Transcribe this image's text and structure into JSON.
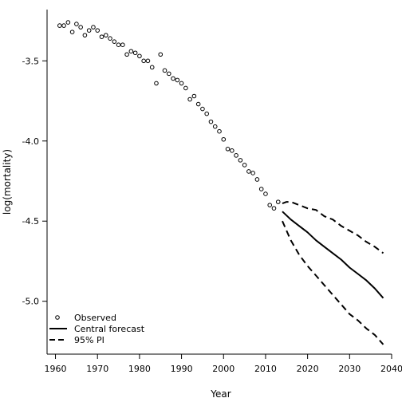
{
  "chart_data": {
    "type": "scatter",
    "title": "",
    "xlabel": "Year",
    "ylabel": "log(mortality)",
    "xlim": [
      1958,
      2040
    ],
    "ylim": [
      -5.33,
      -3.18
    ],
    "xticks": [
      1960,
      1970,
      1980,
      1990,
      2000,
      2010,
      2020,
      2030,
      2040
    ],
    "yticks": [
      -3.5,
      -4.0,
      -4.5,
      -5.0
    ],
    "ytick_labels": [
      "-3.5",
      "-4.0",
      "-4.5",
      "-5.0"
    ],
    "grid": false,
    "legend_position": "bottom-left",
    "series": [
      {
        "name": "Observed",
        "kind": "points",
        "marker": "open-circle",
        "color": "#000000",
        "x": [
          1961,
          1962,
          1963,
          1964,
          1965,
          1966,
          1967,
          1968,
          1969,
          1970,
          1971,
          1972,
          1973,
          1974,
          1975,
          1976,
          1977,
          1978,
          1979,
          1980,
          1981,
          1982,
          1983,
          1984,
          1985,
          1986,
          1987,
          1988,
          1989,
          1990,
          1991,
          1992,
          1993,
          1994,
          1995,
          1996,
          1997,
          1998,
          1999,
          2000,
          2001,
          2002,
          2003,
          2004,
          2005,
          2006,
          2007,
          2008,
          2009,
          2010,
          2011,
          2012,
          2013
        ],
        "y": [
          -3.28,
          -3.28,
          -3.26,
          -3.32,
          -3.27,
          -3.29,
          -3.34,
          -3.31,
          -3.29,
          -3.31,
          -3.35,
          -3.34,
          -3.36,
          -3.38,
          -3.4,
          -3.4,
          -3.46,
          -3.44,
          -3.45,
          -3.47,
          -3.5,
          -3.5,
          -3.54,
          -3.64,
          -3.46,
          -3.56,
          -3.58,
          -3.61,
          -3.62,
          -3.64,
          -3.67,
          -3.74,
          -3.72,
          -3.77,
          -3.8,
          -3.83,
          -3.88,
          -3.91,
          -3.94,
          -3.99,
          -4.05,
          -4.06,
          -4.09,
          -4.12,
          -4.15,
          -4.19,
          -4.2,
          -4.24,
          -4.3,
          -4.33,
          -4.4,
          -4.42,
          -4.38
        ]
      },
      {
        "name": "Central forecast",
        "kind": "line",
        "dash": "solid",
        "color": "#000000",
        "x": [
          2014,
          2016,
          2018,
          2020,
          2022,
          2024,
          2026,
          2028,
          2030,
          2032,
          2034,
          2036,
          2038
        ],
        "y": [
          -4.44,
          -4.49,
          -4.53,
          -4.57,
          -4.62,
          -4.66,
          -4.7,
          -4.74,
          -4.79,
          -4.83,
          -4.87,
          -4.92,
          -4.98
        ]
      },
      {
        "name": "95% PI",
        "kind": "line",
        "dash": "dashed",
        "color": "#000000",
        "x": [
          2014,
          2015,
          2016,
          2017,
          2018,
          2020,
          2022,
          2024,
          2026,
          2028,
          2030,
          2032,
          2034,
          2036,
          2038
        ],
        "y": [
          -4.39,
          -4.38,
          -4.38,
          -4.39,
          -4.4,
          -4.42,
          -4.43,
          -4.47,
          -4.49,
          -4.53,
          -4.56,
          -4.59,
          -4.63,
          -4.66,
          -4.7
        ]
      },
      {
        "name": "95% PI lower",
        "kind": "line",
        "dash": "dashed",
        "color": "#000000",
        "x": [
          2014,
          2016,
          2018,
          2020,
          2022,
          2024,
          2026,
          2028,
          2030,
          2032,
          2034,
          2036,
          2038
        ],
        "y": [
          -4.5,
          -4.62,
          -4.71,
          -4.78,
          -4.84,
          -4.9,
          -4.96,
          -5.02,
          -5.08,
          -5.12,
          -5.17,
          -5.21,
          -5.27
        ]
      }
    ],
    "legend": [
      {
        "label": "Observed",
        "symbol": "circle"
      },
      {
        "label": "Central forecast",
        "symbol": "solid-line"
      },
      {
        "label": "95% PI",
        "symbol": "dashed-line"
      }
    ]
  }
}
